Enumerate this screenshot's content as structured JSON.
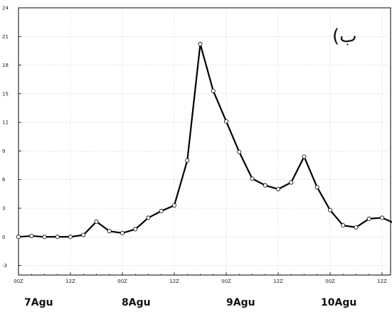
{
  "chart_data": {
    "type": "line",
    "panel_label": "(ب",
    "ylim": [
      -4,
      24
    ],
    "y_ticks": [
      -3,
      0,
      3,
      6,
      9,
      12,
      15,
      18,
      21,
      24
    ],
    "x_tick_labels": [
      "00Z",
      "12Z",
      "00Z",
      "12Z",
      "00Z",
      "12Z",
      "00Z",
      "12Z"
    ],
    "day_labels": [
      "7Agu",
      "8Agu",
      "9Agu",
      "10Agu"
    ],
    "grid": true,
    "series": [
      {
        "x": [
          "7Agu 00Z",
          "7Agu 03Z",
          "7Agu 06Z",
          "7Agu 09Z",
          "7Agu 12Z",
          "7Agu 15Z",
          "7Agu 18Z",
          "7Agu 21Z",
          "8Agu 00Z",
          "8Agu 03Z",
          "8Agu 06Z",
          "8Agu 09Z",
          "8Agu 12Z",
          "8Agu 15Z",
          "8Agu 18Z",
          "8Agu 21Z",
          "9Agu 00Z",
          "9Agu 03Z",
          "9Agu 06Z",
          "9Agu 09Z",
          "9Agu 12Z",
          "9Agu 15Z",
          "9Agu 18Z",
          "9Agu 21Z",
          "10Agu 00Z",
          "10Agu 03Z",
          "10Agu 06Z",
          "10Agu 09Z",
          "10Agu 12Z",
          "10Agu 15Z"
        ],
        "values": [
          0.0,
          0.1,
          0.0,
          0.0,
          0.0,
          0.2,
          1.6,
          0.6,
          0.4,
          0.8,
          2.0,
          2.7,
          3.3,
          8.0,
          20.2,
          15.3,
          12.1,
          8.9,
          6.1,
          5.4,
          5.0,
          5.7,
          8.4,
          5.2,
          2.8,
          1.2,
          1.0,
          1.9,
          2.0,
          1.4
        ]
      }
    ],
    "colors": {
      "line": "#000000",
      "marker_fill": "#ffffff",
      "grid": "#b0b0b0"
    }
  }
}
